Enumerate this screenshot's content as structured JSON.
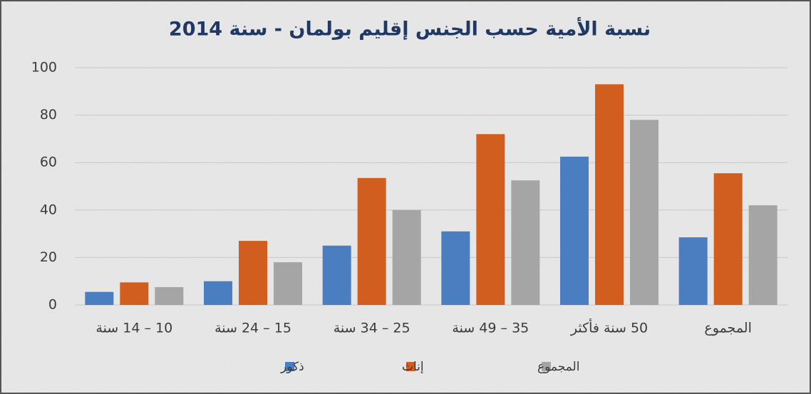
{
  "chart_data": {
    "type": "bar",
    "title": "نسبة الأمية حسب الجنس إقليم بولمان - سنة 2014",
    "categories": [
      "10 – 14 سنة",
      "15 – 24 سنة",
      "25 – 34 سنة",
      "35 – 49 سنة",
      "50 سنة فأكثر",
      "المجموع"
    ],
    "series": [
      {
        "name": "ذكور",
        "color": "#4a7ec0",
        "values": [
          5.5,
          10,
          25,
          31,
          62.5,
          28.5
        ]
      },
      {
        "name": "إناث",
        "color": "#d15e1e",
        "values": [
          9.5,
          27,
          53.5,
          72,
          93,
          55.5
        ]
      },
      {
        "name": "المجموع",
        "color": "#a5a5a5",
        "values": [
          7.5,
          18,
          40,
          52.5,
          78,
          42
        ]
      }
    ],
    "ylim": [
      0,
      100
    ],
    "yticks": [
      0,
      20,
      40,
      60,
      80,
      100
    ],
    "grid": true,
    "legend": "bottom"
  }
}
